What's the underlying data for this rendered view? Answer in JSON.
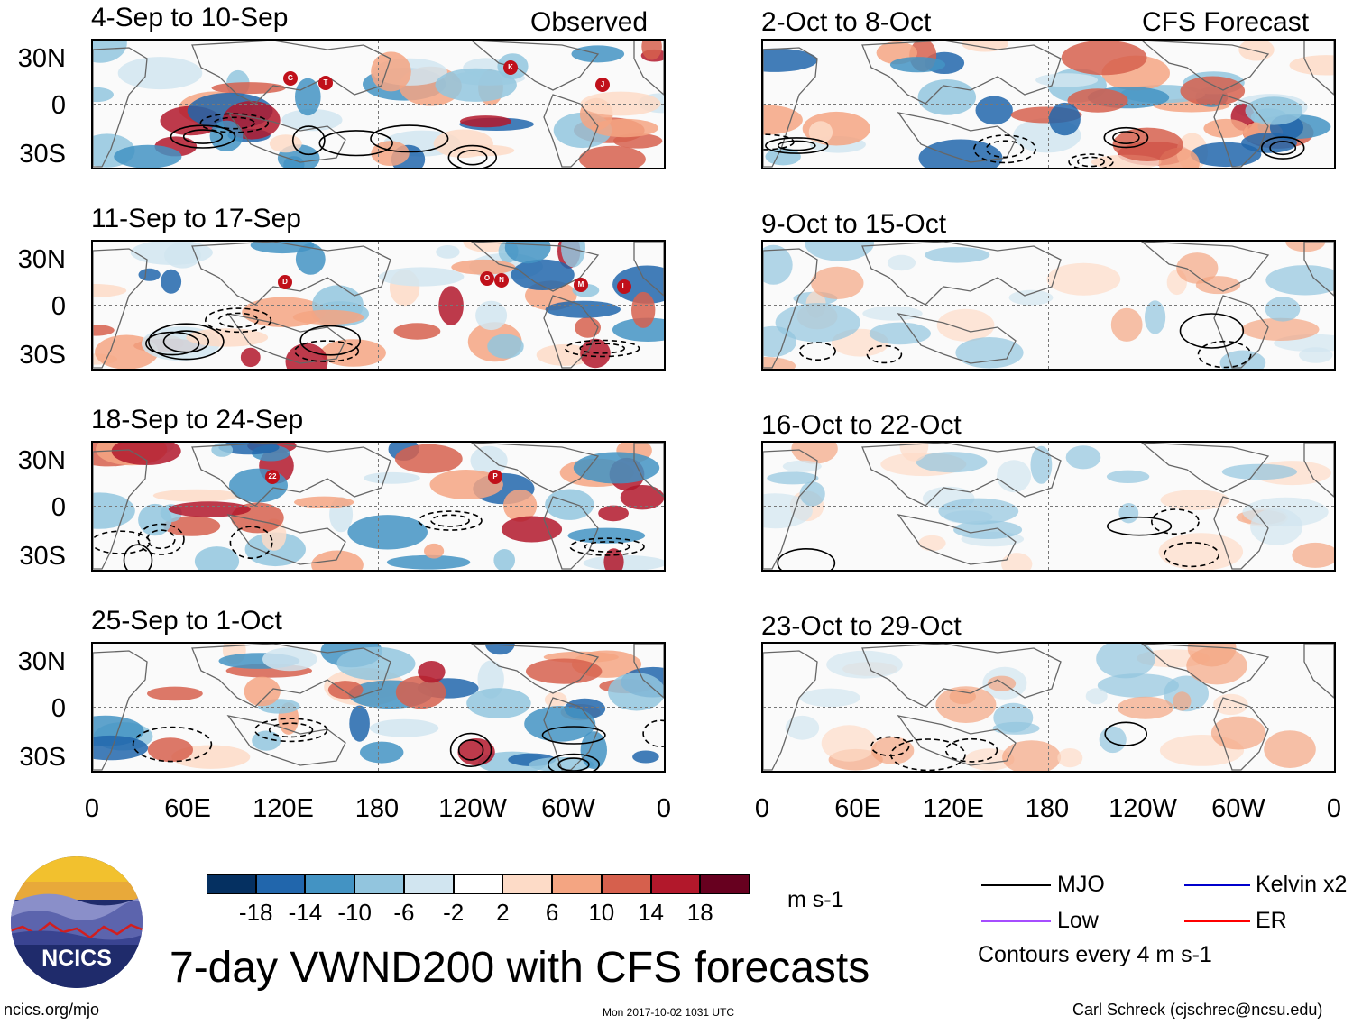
{
  "headers": {
    "left": "Observed",
    "right": "CFS Forecast"
  },
  "observed_panels": [
    {
      "title": "4-Sep to 10-Sep"
    },
    {
      "title": "11-Sep to 17-Sep"
    },
    {
      "title": "18-Sep to 24-Sep"
    },
    {
      "title": "25-Sep to 1-Oct"
    }
  ],
  "forecast_panels": [
    {
      "title": "2-Oct to 8-Oct"
    },
    {
      "title": "9-Oct to 15-Oct"
    },
    {
      "title": "16-Oct to 22-Oct"
    },
    {
      "title": "23-Oct to 29-Oct"
    }
  ],
  "lat_labels": [
    "30N",
    "0",
    "30S"
  ],
  "lon_labels": [
    "0",
    "60E",
    "120E",
    "180",
    "120W",
    "60W",
    "0"
  ],
  "storm_markers": [
    [
      "G",
      "T",
      "K",
      "J"
    ],
    [
      "D",
      "O",
      "N",
      "M",
      "L"
    ],
    [
      "22",
      "P"
    ],
    []
  ],
  "colorbar": {
    "ticks": [
      "-18",
      "-14",
      "-10",
      "-6",
      "-2",
      "2",
      "6",
      "10",
      "14",
      "18"
    ],
    "colors": [
      "#053061",
      "#2166ac",
      "#4393c3",
      "#92c5de",
      "#d1e5f0",
      "#ffffff",
      "#fddbc7",
      "#f4a582",
      "#d6604d",
      "#b2182b",
      "#67001f"
    ],
    "units": "m s-1"
  },
  "legend": {
    "mjo": "MJO",
    "kelvin": "Kelvin x2",
    "low": "Low",
    "er": "ER",
    "contours": "Contours every 4 m s-1",
    "colors": {
      "mjo": "#000000",
      "kelvin": "#0000cc",
      "low": "#a64dff",
      "er": "#ff0000"
    }
  },
  "logo": {
    "text": "NCICS"
  },
  "title": "7-day VWND200 with CFS forecasts",
  "footer": {
    "url": "ncics.org/mjo",
    "timestamp": "Mon 2017-10-02 1031 UTC",
    "author": "Carl Schreck (cjschrec@ncsu.edu)"
  }
}
